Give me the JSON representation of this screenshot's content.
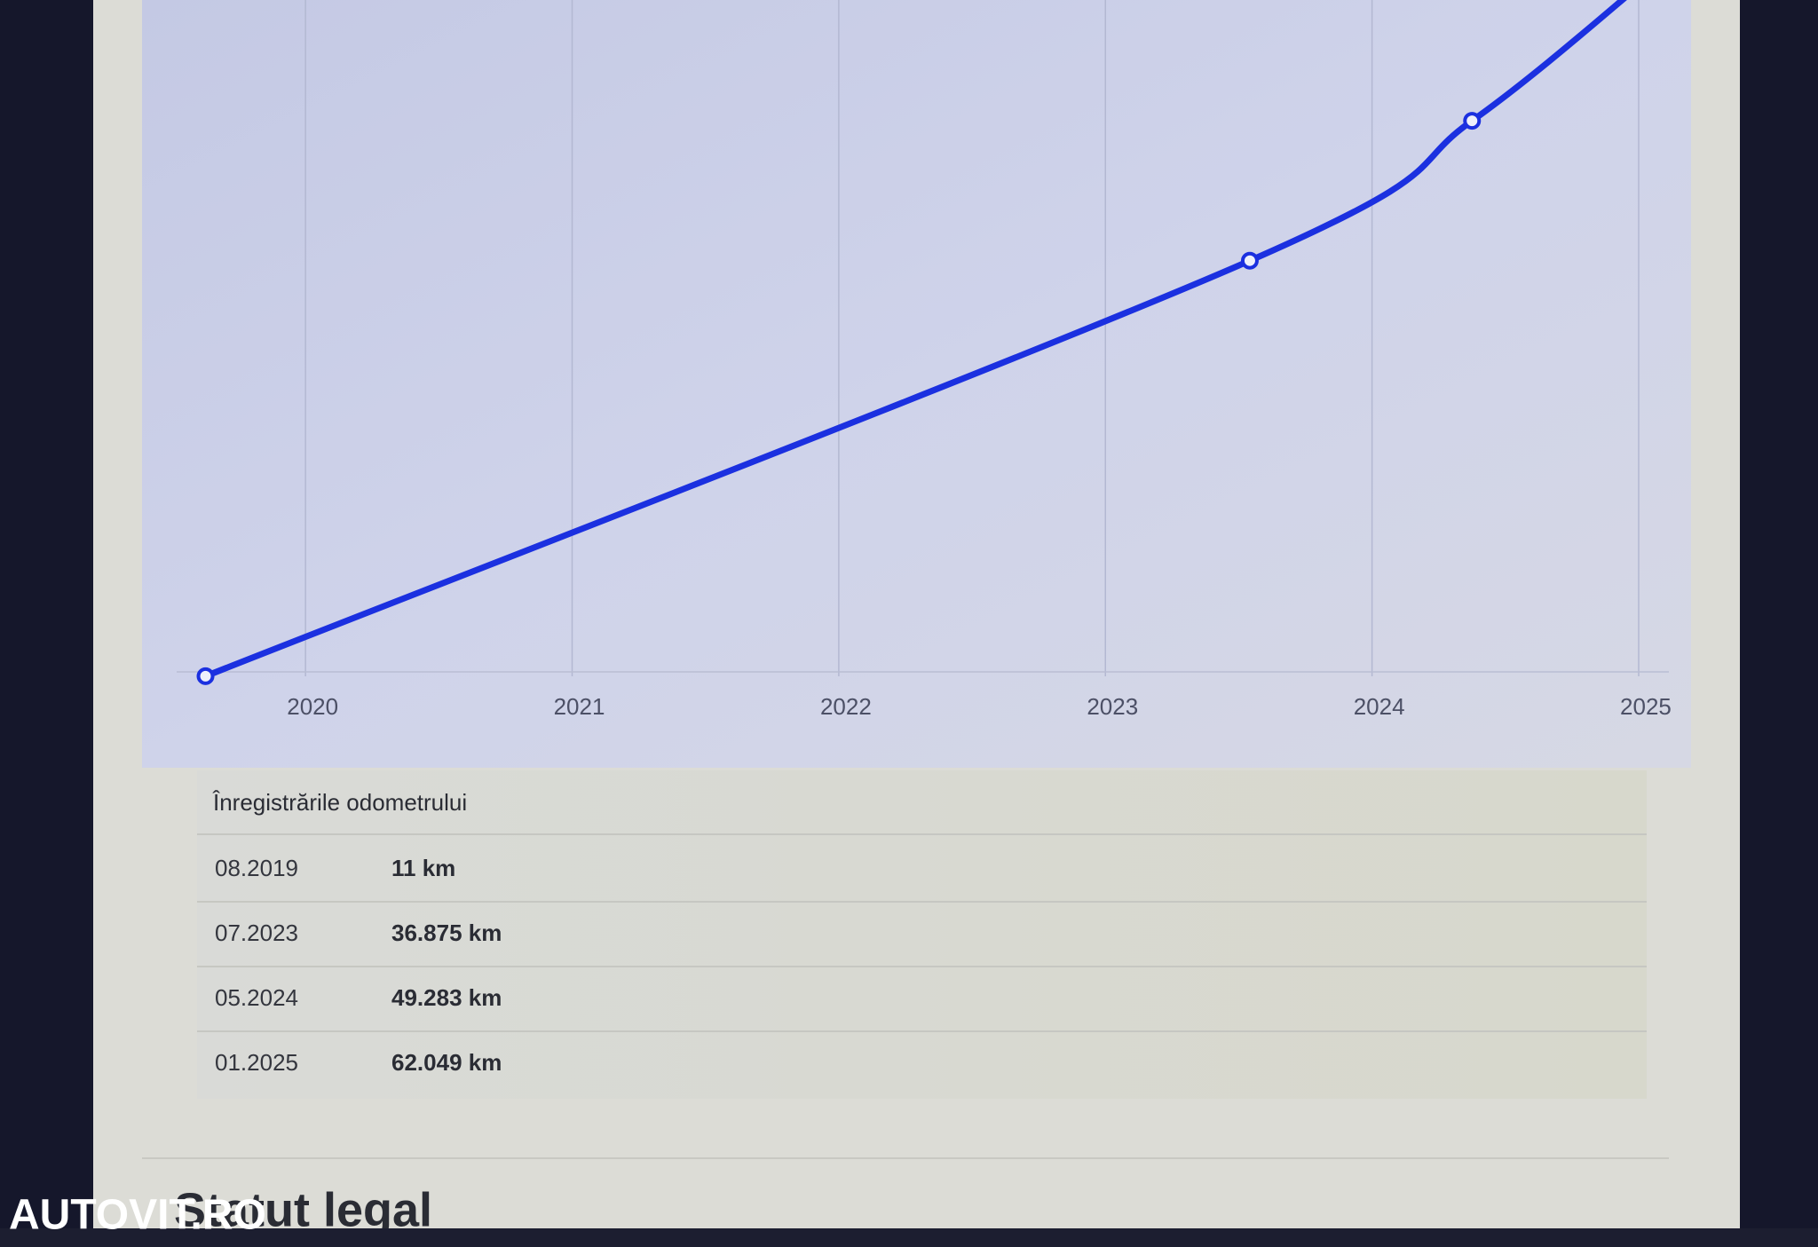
{
  "chart_data": {
    "type": "line",
    "x": [
      "08.2019",
      "07.2023",
      "05.2024",
      "01.2025"
    ],
    "series": [
      {
        "color": "#1b30e0",
        "values": [
          11,
          36875,
          49283,
          62049
        ]
      }
    ],
    "xlim": [
      2019.55,
      2025.05
    ],
    "xticks": [
      2020,
      2021,
      2022,
      2023,
      2024,
      2025
    ],
    "ylim": [
      0,
      60000
    ],
    "grid": true
  },
  "table": {
    "title": "Înregistrările odometrului",
    "rows": [
      [
        "08.2019",
        "11 km"
      ],
      [
        "07.2023",
        "36.875 km"
      ],
      [
        "05.2024",
        "49.283 km"
      ],
      [
        "01.2025",
        "62.049 km"
      ]
    ]
  },
  "section_title": "Statut legal",
  "watermark": "AUTOVIT.RO"
}
